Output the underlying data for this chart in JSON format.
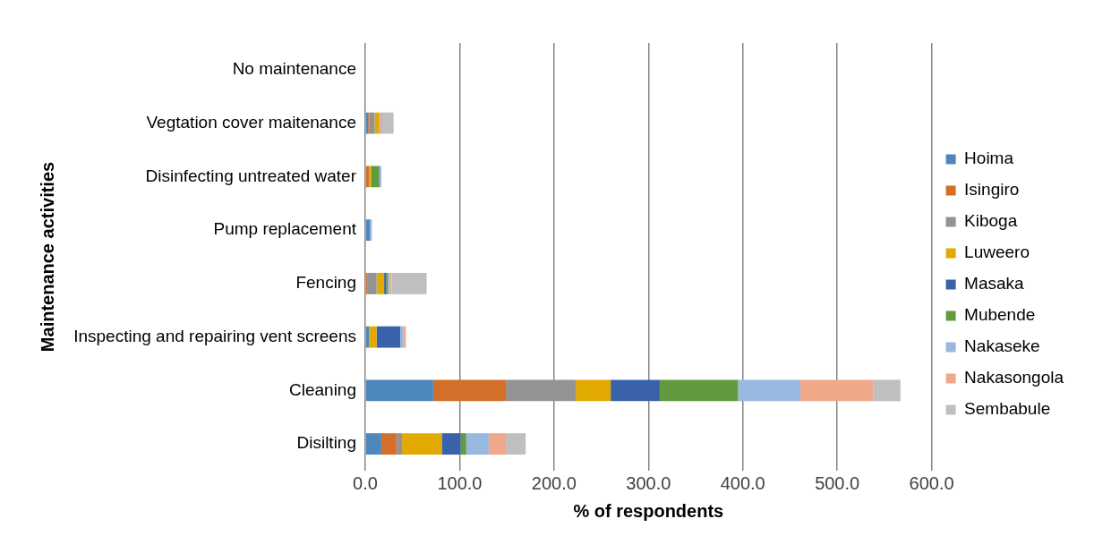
{
  "chart_data": {
    "type": "bar",
    "orientation": "horizontal",
    "stacked": true,
    "xlabel": "% of respondents",
    "ylabel": "Maintenance activities",
    "categories": [
      "No maintenance",
      "Vegtation cover maitenance",
      "Disinfecting untreated water",
      "Pump replacement",
      "Fencing",
      "Inspecting and repairing vent screens",
      "Cleaning",
      "Disilting"
    ],
    "series": [
      {
        "name": "Hoima",
        "color": "#4e87bb",
        "values": [
          0,
          3,
          0,
          5,
          0,
          4,
          72,
          17
        ]
      },
      {
        "name": "Isingiro",
        "color": "#d46f2a",
        "values": [
          0,
          1,
          4,
          0,
          2,
          0,
          77,
          16
        ]
      },
      {
        "name": "Kiboga",
        "color": "#939393",
        "values": [
          0,
          6,
          0,
          0,
          10,
          0,
          74,
          6
        ]
      },
      {
        "name": "Luweero",
        "color": "#e2aa00",
        "values": [
          0,
          5,
          2,
          0,
          8,
          8,
          37,
          42
        ]
      },
      {
        "name": "Masaka",
        "color": "#3a62ab",
        "values": [
          0,
          0,
          0,
          0,
          2,
          25,
          52,
          20
        ]
      },
      {
        "name": "Mubende",
        "color": "#629a40",
        "values": [
          0,
          0,
          9,
          0,
          2,
          0,
          83,
          6
        ]
      },
      {
        "name": "Nakaseke",
        "color": "#98b8df",
        "values": [
          0,
          1,
          2,
          2,
          2,
          3,
          66,
          24
        ]
      },
      {
        "name": "Nakasongola",
        "color": "#f1a88a",
        "values": [
          0,
          2,
          0,
          0,
          2,
          3,
          77,
          18
        ]
      },
      {
        "name": "Sembabule",
        "color": "#bfbfbf",
        "values": [
          0,
          12,
          0,
          0,
          37,
          0,
          29,
          21
        ]
      }
    ],
    "xlim": [
      0,
      600
    ],
    "xticks": [
      {
        "value": 0,
        "label": "0.0"
      },
      {
        "value": 100,
        "label": "100.0"
      },
      {
        "value": 200,
        "label": "200.0"
      },
      {
        "value": 300,
        "label": "300.0"
      },
      {
        "value": 400,
        "label": "400.0"
      },
      {
        "value": 500,
        "label": "500.0"
      },
      {
        "value": 600,
        "label": "600.0"
      }
    ],
    "grid": "x",
    "legend": "right"
  }
}
